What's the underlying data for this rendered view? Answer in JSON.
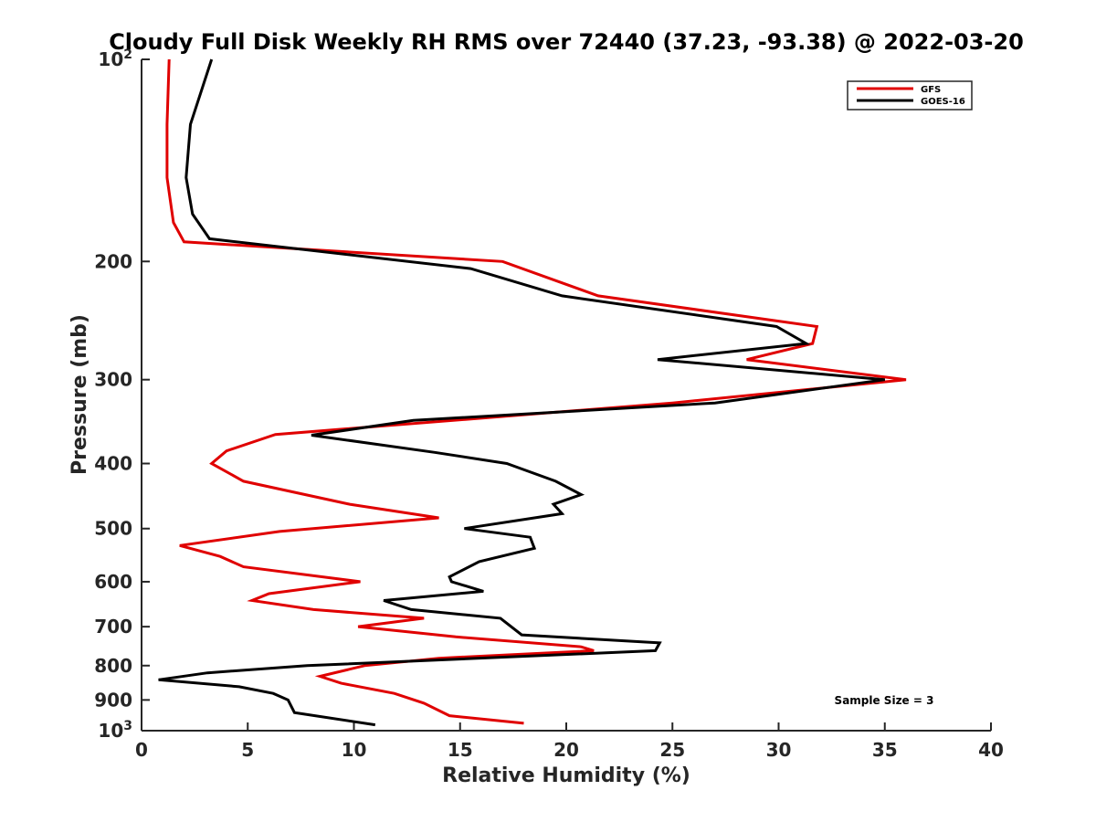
{
  "chart_data": {
    "type": "line",
    "title": "Cloudy Full Disk Weekly RH RMS over 72440 (37.23, -93.38) @ 2022-03-20",
    "xlabel": "Relative Humidity (%)",
    "ylabel": "Pressure (mb)",
    "xlim": [
      0,
      40
    ],
    "ylim": [
      100,
      1000
    ],
    "y_scale": "log",
    "y_reversed": true,
    "grid": false,
    "legend_position": "top-right",
    "x_ticks": [
      "0",
      "5",
      "10",
      "15",
      "20",
      "25",
      "30",
      "35",
      "40"
    ],
    "y_ticks": [
      {
        "value": 100,
        "base": "10",
        "exp": "2"
      },
      {
        "value": 200,
        "label": "200"
      },
      {
        "value": 300,
        "label": "300"
      },
      {
        "value": 400,
        "label": "400"
      },
      {
        "value": 500,
        "label": "500"
      },
      {
        "value": 600,
        "label": "600"
      },
      {
        "value": 700,
        "label": "700"
      },
      {
        "value": 800,
        "label": "800"
      },
      {
        "value": 900,
        "label": "900"
      },
      {
        "value": 1000,
        "base": "10",
        "exp": "3"
      }
    ],
    "annotation": "Sample Size = 3",
    "series": [
      {
        "name": "GFS",
        "color": "#e00000",
        "points": [
          [
            1.3,
            100
          ],
          [
            1.2,
            125
          ],
          [
            1.2,
            150
          ],
          [
            1.5,
            175
          ],
          [
            2.0,
            187
          ],
          [
            17.0,
            200
          ],
          [
            21.5,
            225
          ],
          [
            31.8,
            250
          ],
          [
            31.6,
            265
          ],
          [
            28.5,
            280
          ],
          [
            36.0,
            300
          ],
          [
            25.0,
            325
          ],
          [
            6.3,
            362
          ],
          [
            4.0,
            383
          ],
          [
            3.3,
            400
          ],
          [
            4.8,
            425
          ],
          [
            9.8,
            460
          ],
          [
            14.0,
            482
          ],
          [
            6.5,
            505
          ],
          [
            1.8,
            530
          ],
          [
            3.7,
            550
          ],
          [
            4.8,
            570
          ],
          [
            10.3,
            600
          ],
          [
            6.0,
            625
          ],
          [
            5.2,
            640
          ],
          [
            8.1,
            660
          ],
          [
            13.3,
            680
          ],
          [
            10.2,
            700
          ],
          [
            14.8,
            725
          ],
          [
            20.7,
            750
          ],
          [
            21.3,
            760
          ],
          [
            14.0,
            780
          ],
          [
            10.5,
            800
          ],
          [
            8.4,
            830
          ],
          [
            9.4,
            850
          ],
          [
            11.9,
            880
          ],
          [
            13.3,
            910
          ],
          [
            14.5,
            950
          ],
          [
            18.0,
            975
          ]
        ]
      },
      {
        "name": "GOES-16",
        "color": "#000000",
        "points": [
          [
            3.3,
            100
          ],
          [
            2.3,
            125
          ],
          [
            2.1,
            150
          ],
          [
            2.4,
            170
          ],
          [
            3.2,
            185
          ],
          [
            15.5,
            205
          ],
          [
            19.8,
            225
          ],
          [
            29.9,
            250
          ],
          [
            31.3,
            265
          ],
          [
            24.3,
            280
          ],
          [
            35.0,
            300
          ],
          [
            27.0,
            325
          ],
          [
            12.8,
            345
          ],
          [
            8.0,
            363
          ],
          [
            13.8,
            385
          ],
          [
            17.2,
            400
          ],
          [
            19.5,
            425
          ],
          [
            20.7,
            445
          ],
          [
            19.4,
            460
          ],
          [
            19.8,
            475
          ],
          [
            15.2,
            500
          ],
          [
            18.3,
            515
          ],
          [
            18.5,
            535
          ],
          [
            15.9,
            560
          ],
          [
            14.5,
            590
          ],
          [
            14.6,
            600
          ],
          [
            16.1,
            620
          ],
          [
            11.4,
            640
          ],
          [
            12.7,
            660
          ],
          [
            16.9,
            680
          ],
          [
            17.9,
            720
          ],
          [
            24.4,
            740
          ],
          [
            24.2,
            760
          ],
          [
            7.8,
            800
          ],
          [
            3.1,
            820
          ],
          [
            0.8,
            840
          ],
          [
            4.6,
            860
          ],
          [
            6.2,
            880
          ],
          [
            6.9,
            900
          ],
          [
            7.2,
            940
          ],
          [
            11.0,
            980
          ]
        ]
      }
    ]
  }
}
